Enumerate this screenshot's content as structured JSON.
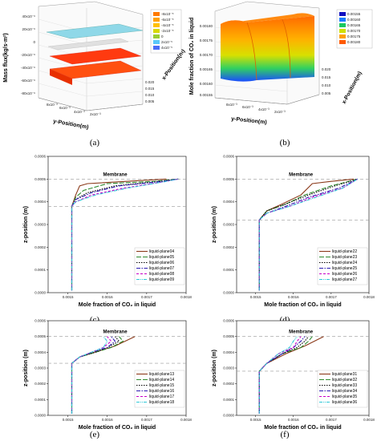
{
  "panels_3d": [
    {
      "label": "(a)",
      "zlabel": "Mass flux(kg/s·m²)",
      "zticks": [
        "40x10⁻⁶",
        "20x10⁻⁶",
        "0",
        "-20x10⁻⁶",
        "-40x10⁻⁶",
        "-60x10⁻⁶",
        "-80x10⁻⁶"
      ],
      "ylabel": "y-Position(m)",
      "yticks": [
        "8x10⁻³",
        "6x10⁻³",
        "4x10⁻³",
        "2x10⁻³"
      ],
      "xlabel": "x-Position(m)",
      "xticks": [
        "0.020",
        "0.015",
        "0.010",
        "0.005"
      ],
      "legend": [
        "-8x10⁻⁵",
        "-6x10⁻⁵",
        "-4x10⁻⁵",
        "-2x10⁻⁵",
        "0",
        "2x10⁻⁵",
        "4x10⁻⁵"
      ],
      "legend_colors": [
        "#ff7a00",
        "#ffa000",
        "#ffc000",
        "#d8d800",
        "#9acd32",
        "#5ac8fa",
        "#4a6cf7"
      ]
    },
    {
      "label": "(b)",
      "zlabel": "Mole fraction of CO₂ in liquid",
      "zticks": [
        "0.00180",
        "0.00175",
        "0.00170",
        "0.00165",
        "0.00160",
        "0.00155"
      ],
      "ylabel": "y-Position(m)",
      "yticks": [
        "8x10⁻³",
        "6x10⁻³",
        "4x10⁻³",
        "2x10⁻³"
      ],
      "xlabel": "x-Position(m)",
      "xticks": [
        "0.020",
        "0.015",
        "0.010",
        "0.005"
      ],
      "legend": [
        "0.00155",
        "0.00160",
        "0.00165",
        "0.00170",
        "0.00175",
        "0.00180"
      ],
      "legend_colors": [
        "#1010c0",
        "#1a7cff",
        "#18c860",
        "#d0e000",
        "#ffa000",
        "#ff5a00"
      ]
    }
  ],
  "line_panels_common": {
    "xlabel": "Mole fraction of CO₂ in liquid",
    "ylabel": "z-position (m)",
    "membrane": "Membrane",
    "xticks": [
      "0.0015",
      "0.0016",
      "0.0017",
      "0.0018"
    ],
    "yticks": [
      "0.0000",
      "0.0001",
      "0.0002",
      "0.0003",
      "0.0004",
      "0.0005",
      "0.0006"
    ],
    "series_colors": [
      "#8b3a1a",
      "#2e8b2e",
      "#000000",
      "#2a1ab0",
      "#c800c8",
      "#30c8d8"
    ],
    "series_dash": [
      "",
      "6,2",
      "1.5,1.5",
      "5,1.5,1.5,1.5",
      "3,2",
      "4,1,1,1,1,1"
    ]
  },
  "chart_data": [
    {
      "type": "line",
      "panel": "(c)",
      "xlabel": "Mole fraction of CO₂ in liquid",
      "ylabel": "z-position (m)",
      "xlim": [
        0.00145,
        0.0018
      ],
      "ylim": [
        0,
        0.0006
      ],
      "membrane_z": 0.0005,
      "ref_line_z": 0.00038,
      "series": [
        {
          "name": "liquid-plane04",
          "x": [
            0.00151,
            0.00151,
            0.00152,
            0.00153,
            0.00155,
            0.00175
          ],
          "y": [
            1e-05,
            0.00038,
            0.00043,
            0.00047,
            0.00048,
            0.0005
          ]
        },
        {
          "name": "liquid-plane05",
          "x": [
            0.00151,
            0.00151,
            0.00152,
            0.00154,
            0.0016,
            0.00172,
            0.00178
          ],
          "y": [
            1e-05,
            0.00038,
            0.00042,
            0.00045,
            0.00048,
            0.00049,
            0.0005
          ]
        },
        {
          "name": "liquid-plane06",
          "x": [
            0.00151,
            0.00151,
            0.00152,
            0.00155,
            0.00162,
            0.00173,
            0.00178
          ],
          "y": [
            1e-05,
            0.00038,
            0.00041,
            0.00044,
            0.00047,
            0.00049,
            0.0005
          ]
        },
        {
          "name": "liquid-plane07",
          "x": [
            0.00151,
            0.00151,
            0.00152,
            0.00156,
            0.00163,
            0.00174,
            0.00178
          ],
          "y": [
            1e-05,
            0.00038,
            0.00041,
            0.00044,
            0.00047,
            0.00049,
            0.0005
          ]
        },
        {
          "name": "liquid-plane08",
          "x": [
            0.00151,
            0.00151,
            0.00152,
            0.00156,
            0.00164,
            0.00175,
            0.00178
          ],
          "y": [
            1e-05,
            0.00038,
            0.0004,
            0.00043,
            0.00046,
            0.00049,
            0.0005
          ]
        },
        {
          "name": "liquid-plane09",
          "x": [
            0.00151,
            0.00151,
            0.00152,
            0.00157,
            0.00165,
            0.00175,
            0.00178
          ],
          "y": [
            1e-05,
            0.00038,
            0.0004,
            0.00043,
            0.00046,
            0.00049,
            0.0005
          ]
        }
      ]
    },
    {
      "type": "line",
      "panel": "(d)",
      "xlabel": "Mole fraction of CO₂ in liquid",
      "ylabel": "z-position (m)",
      "xlim": [
        0.00145,
        0.0018
      ],
      "ylim": [
        0,
        0.0006
      ],
      "membrane_z": 0.0005,
      "ref_line_z": 0.00032,
      "series": [
        {
          "name": "liquid-plane22",
          "x": [
            0.00151,
            0.00151,
            0.00153,
            0.00157,
            0.00162,
            0.00165,
            0.0017,
            0.00176
          ],
          "y": [
            1e-05,
            0.00032,
            0.00036,
            0.00039,
            0.00043,
            0.00048,
            0.00049,
            0.0005
          ]
        },
        {
          "name": "liquid-plane23",
          "x": [
            0.00151,
            0.00151,
            0.00153,
            0.00158,
            0.00163,
            0.0017,
            0.00177
          ],
          "y": [
            1e-05,
            0.00032,
            0.00036,
            0.00039,
            0.00043,
            0.00047,
            0.0005
          ]
        },
        {
          "name": "liquid-plane24",
          "x": [
            0.00151,
            0.00151,
            0.00153,
            0.00158,
            0.00164,
            0.00171,
            0.00177
          ],
          "y": [
            1e-05,
            0.00032,
            0.00036,
            0.00039,
            0.00043,
            0.00047,
            0.0005
          ]
        },
        {
          "name": "liquid-plane25",
          "x": [
            0.00151,
            0.00151,
            0.00153,
            0.00158,
            0.00164,
            0.00172,
            0.00177
          ],
          "y": [
            1e-05,
            0.00032,
            0.00035,
            0.00038,
            0.00042,
            0.00046,
            0.0005
          ]
        },
        {
          "name": "liquid-plane26",
          "x": [
            0.00151,
            0.00151,
            0.00153,
            0.00159,
            0.00165,
            0.00173,
            0.00177
          ],
          "y": [
            1e-05,
            0.00032,
            0.00035,
            0.00038,
            0.00042,
            0.00046,
            0.0005
          ]
        },
        {
          "name": "liquid-plane27",
          "x": [
            0.00151,
            0.00151,
            0.00153,
            0.00159,
            0.00166,
            0.00173,
            0.00177
          ],
          "y": [
            1e-05,
            0.00032,
            0.00035,
            0.00038,
            0.00042,
            0.00046,
            0.0005
          ]
        }
      ]
    },
    {
      "type": "line",
      "panel": "(e)",
      "xlabel": "Mole fraction of CO₂ in liquid",
      "ylabel": "z-position (m)",
      "xlim": [
        0.00145,
        0.0018
      ],
      "ylim": [
        0,
        0.0006
      ],
      "membrane_z": 0.0005,
      "ref_line_z": 0.00033,
      "series": [
        {
          "name": "liquid-plane13",
          "x": [
            0.00151,
            0.00151,
            0.00153,
            0.00158,
            0.00162,
            0.00167
          ],
          "y": [
            1e-05,
            0.00033,
            0.00037,
            0.00041,
            0.00044,
            0.0005
          ]
        },
        {
          "name": "liquid-plane14",
          "x": [
            0.00151,
            0.00151,
            0.00153,
            0.00157,
            0.00161,
            0.00164,
            0.00163
          ],
          "y": [
            1e-05,
            0.00033,
            0.00037,
            0.0004,
            0.00043,
            0.00047,
            0.0005
          ]
        },
        {
          "name": "liquid-plane15",
          "x": [
            0.00151,
            0.00151,
            0.00153,
            0.00157,
            0.0016,
            0.00163,
            0.00162
          ],
          "y": [
            1e-05,
            0.00033,
            0.00037,
            0.0004,
            0.00043,
            0.00047,
            0.0005
          ]
        },
        {
          "name": "liquid-plane16",
          "x": [
            0.00151,
            0.00151,
            0.00153,
            0.00156,
            0.0016,
            0.00162,
            0.00161
          ],
          "y": [
            1e-05,
            0.00033,
            0.00037,
            0.0004,
            0.00043,
            0.00047,
            0.0005
          ]
        },
        {
          "name": "liquid-plane17",
          "x": [
            0.00151,
            0.00151,
            0.00153,
            0.00156,
            0.00159,
            0.00161,
            0.0016
          ],
          "y": [
            1e-05,
            0.00033,
            0.00037,
            0.0004,
            0.00043,
            0.00047,
            0.0005
          ]
        },
        {
          "name": "liquid-plane18",
          "x": [
            0.00151,
            0.00151,
            0.00153,
            0.00156,
            0.00159,
            0.0016,
            0.00159
          ],
          "y": [
            1e-05,
            0.00033,
            0.00037,
            0.0004,
            0.00043,
            0.00047,
            0.0005
          ]
        }
      ]
    },
    {
      "type": "line",
      "panel": "(f)",
      "xlabel": "Mole fraction of CO₂ in liquid",
      "ylabel": "z-position (m)",
      "xlim": [
        0.00145,
        0.0018
      ],
      "ylim": [
        0,
        0.0006
      ],
      "membrane_z": 0.0005,
      "ref_line_z": 0.00028,
      "series": [
        {
          "name": "liquid-plane31",
          "x": [
            0.00151,
            0.00151,
            0.00153,
            0.00158,
            0.00163,
            0.00168
          ],
          "y": [
            1e-05,
            0.00028,
            0.00033,
            0.00039,
            0.00044,
            0.0005
          ]
        },
        {
          "name": "liquid-plane32",
          "x": [
            0.00151,
            0.00151,
            0.00153,
            0.00157,
            0.00162,
            0.00164,
            0.00165
          ],
          "y": [
            1e-05,
            0.00028,
            0.00033,
            0.00039,
            0.00043,
            0.00047,
            0.0005
          ]
        },
        {
          "name": "liquid-plane33",
          "x": [
            0.00151,
            0.00151,
            0.00153,
            0.00157,
            0.00161,
            0.00163,
            0.00164
          ],
          "y": [
            1e-05,
            0.00028,
            0.00033,
            0.00039,
            0.00043,
            0.00047,
            0.0005
          ]
        },
        {
          "name": "liquid-plane34",
          "x": [
            0.00151,
            0.00151,
            0.00153,
            0.00157,
            0.0016,
            0.00162,
            0.00163
          ],
          "y": [
            1e-05,
            0.00028,
            0.00033,
            0.00039,
            0.00043,
            0.00047,
            0.0005
          ]
        },
        {
          "name": "liquid-plane35",
          "x": [
            0.00151,
            0.00151,
            0.00153,
            0.00156,
            0.0016,
            0.00161,
            0.00162
          ],
          "y": [
            1e-05,
            0.00028,
            0.00033,
            0.00039,
            0.00043,
            0.00047,
            0.0005
          ]
        },
        {
          "name": "liquid-plane36",
          "x": [
            0.00151,
            0.00151,
            0.00153,
            0.00156,
            0.00159,
            0.0016,
            0.00161
          ],
          "y": [
            1e-05,
            0.00028,
            0.00033,
            0.00039,
            0.00043,
            0.00047,
            0.0005
          ]
        }
      ]
    }
  ]
}
